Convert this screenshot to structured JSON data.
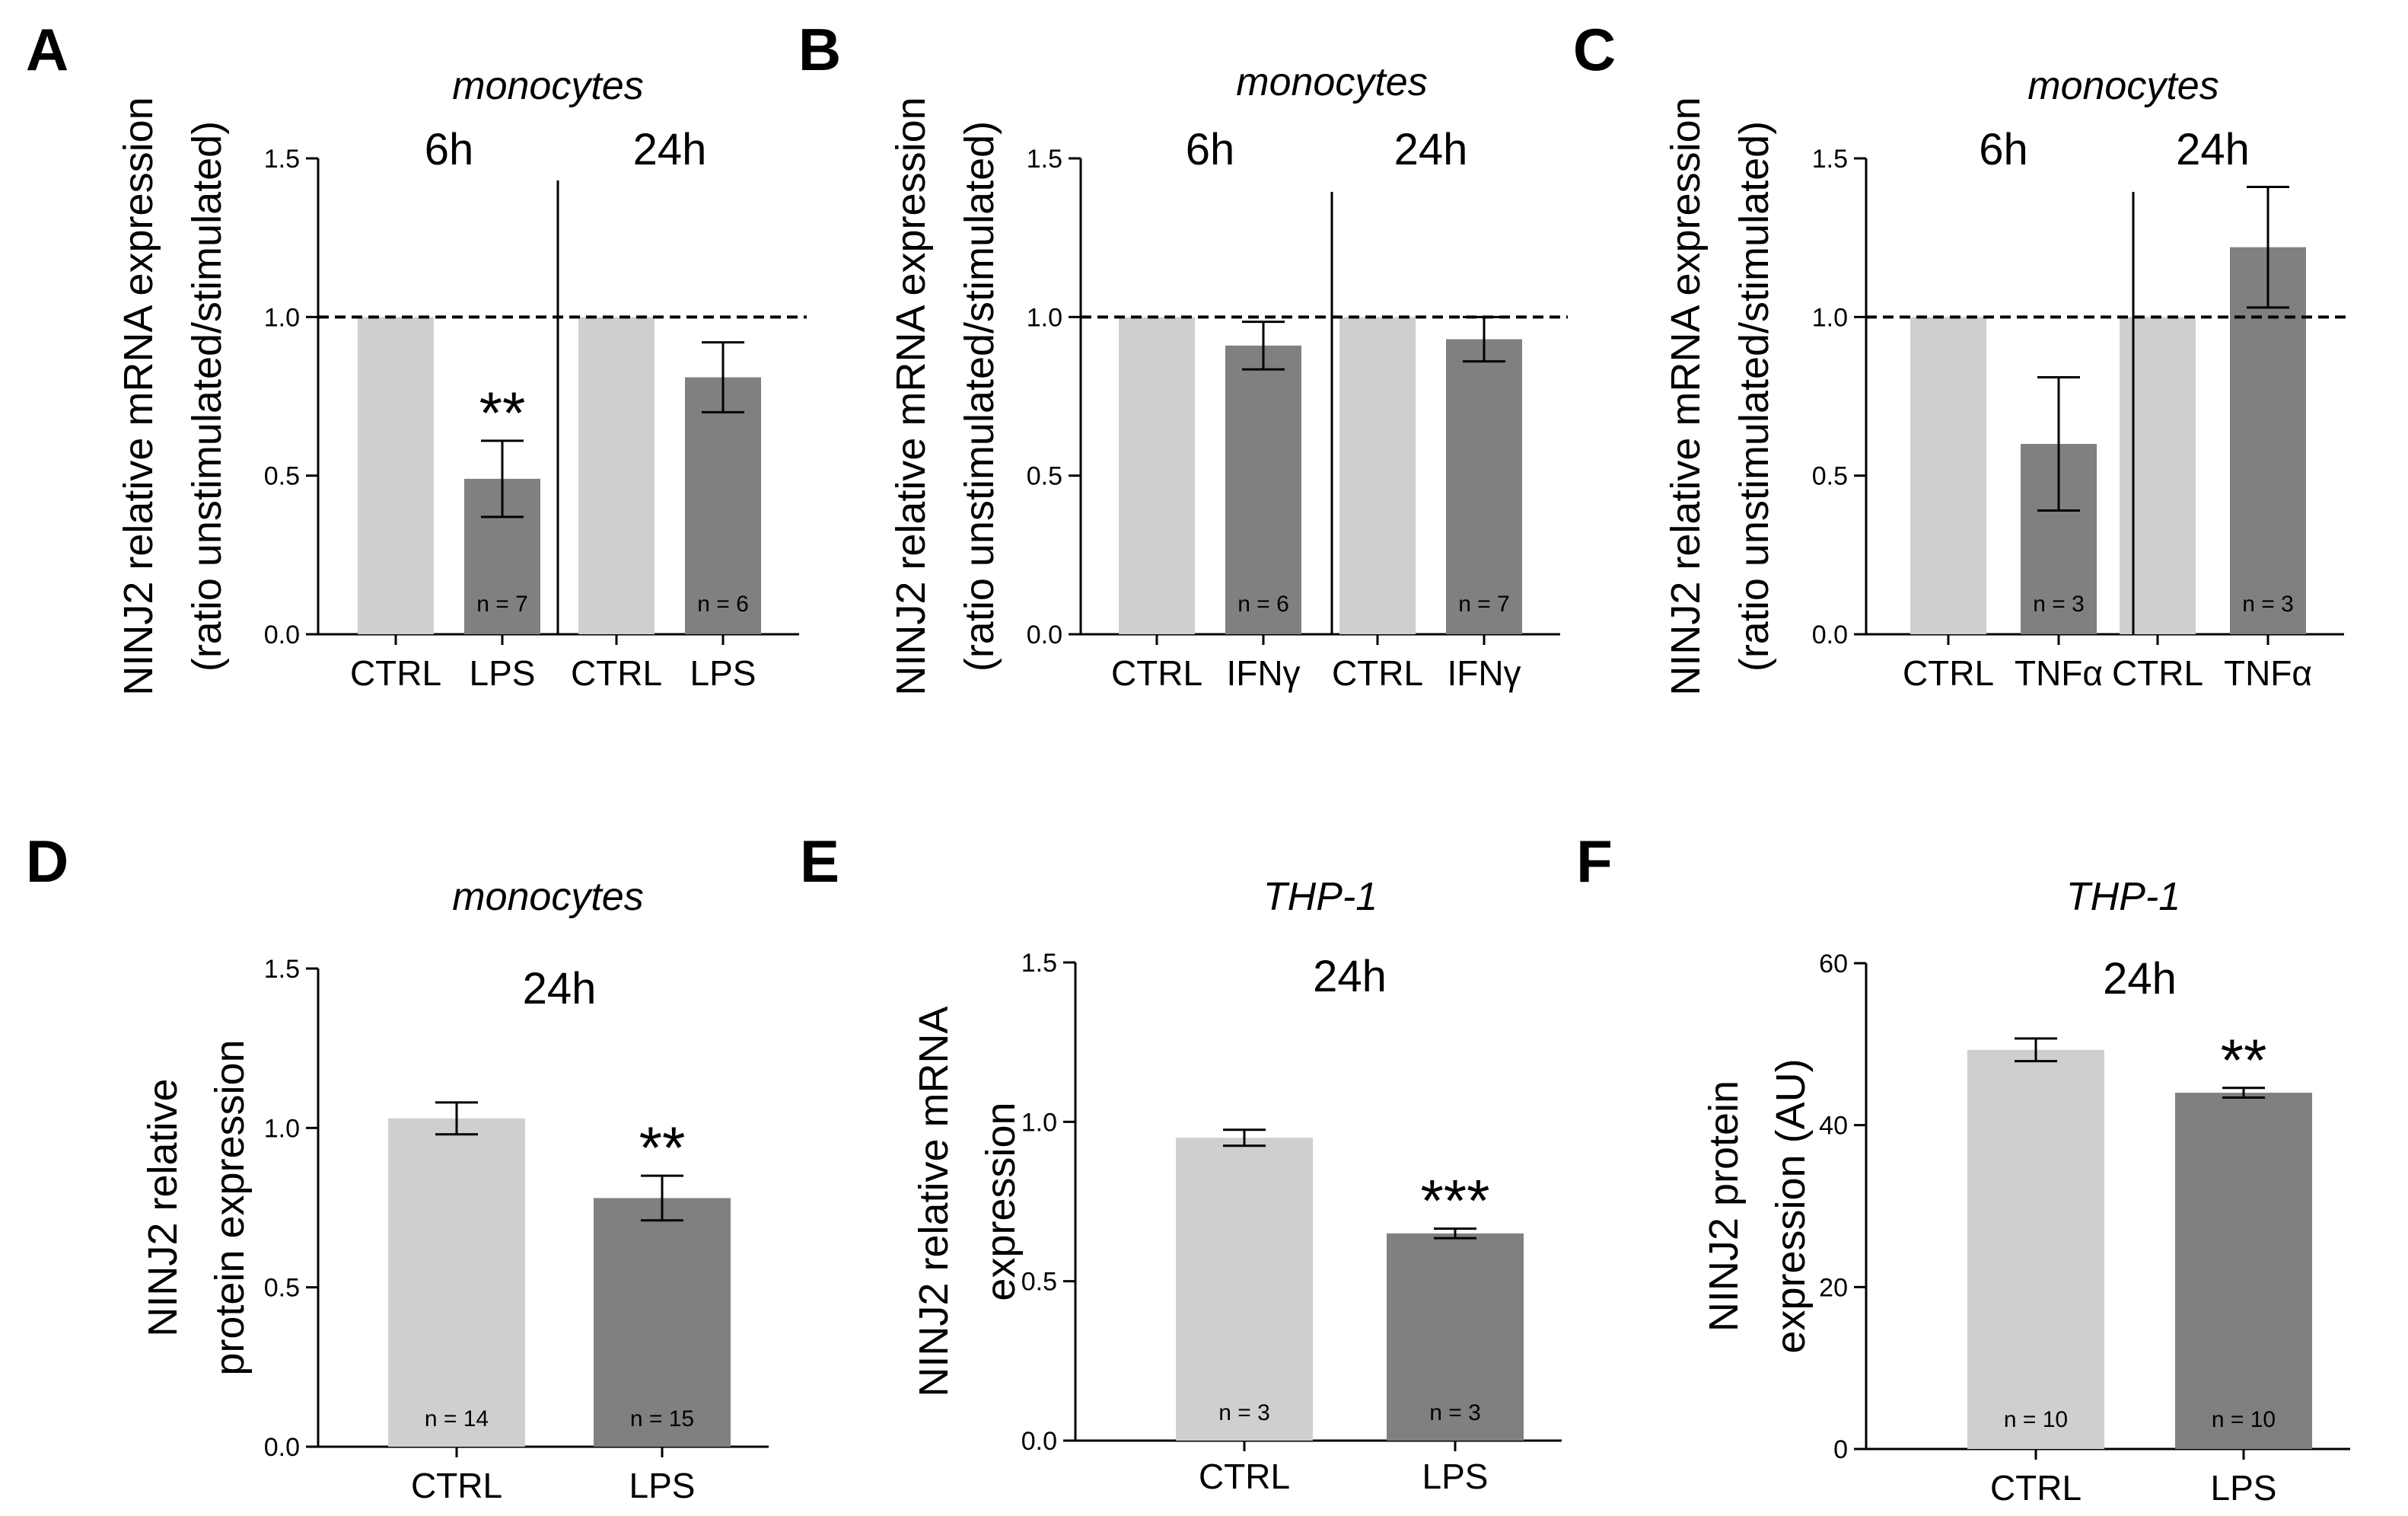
{
  "colors": {
    "ctrl": "#cfcfcf",
    "treated": "#808080",
    "axis": "#000000",
    "reference_line": "#000000"
  },
  "chart_data": [
    {
      "panel": "A",
      "type": "bar",
      "subtitle": "monocytes",
      "ylabel_lines": [
        "NINJ2 relative mRNA expression",
        "(ratio unstimulated/stimulated)"
      ],
      "ylim": [
        0,
        1.5
      ],
      "yticks": [
        "0.0",
        "0.5",
        "1.0",
        "1.5"
      ],
      "reference_line": 1.0,
      "groups": [
        {
          "time": "6h",
          "categories": [
            "CTRL",
            "LPS"
          ],
          "values": [
            1.0,
            0.49
          ],
          "errors": [
            null,
            0.12
          ],
          "n": [
            null,
            "n = 7"
          ],
          "significance": [
            null,
            "**"
          ]
        },
        {
          "time": "24h",
          "categories": [
            "CTRL",
            "LPS"
          ],
          "values": [
            1.0,
            0.81
          ],
          "errors": [
            null,
            0.11
          ],
          "n": [
            null,
            "n = 6"
          ],
          "significance": [
            null,
            null
          ]
        }
      ]
    },
    {
      "panel": "B",
      "type": "bar",
      "subtitle": "monocytes",
      "ylabel_lines": [
        "NINJ2 relative mRNA expression",
        "(ratio unstimulated/stimulated)"
      ],
      "ylim": [
        0,
        1.5
      ],
      "yticks": [
        "0.0",
        "0.5",
        "1.0",
        "1.5"
      ],
      "reference_line": 1.0,
      "groups": [
        {
          "time": "6h",
          "categories": [
            "CTRL",
            "IFNγ"
          ],
          "values": [
            1.0,
            0.91
          ],
          "errors": [
            null,
            0.075
          ],
          "n": [
            null,
            "n = 6"
          ],
          "significance": [
            null,
            null
          ]
        },
        {
          "time": "24h",
          "categories": [
            "CTRL",
            "IFNγ"
          ],
          "values": [
            1.0,
            0.93
          ],
          "errors": [
            null,
            0.07
          ],
          "n": [
            null,
            "n = 7"
          ],
          "significance": [
            null,
            null
          ]
        }
      ]
    },
    {
      "panel": "C",
      "type": "bar",
      "subtitle": "monocytes",
      "ylabel_lines": [
        "NINJ2 relative mRNA expression",
        "(ratio unstimulated/stimulated)"
      ],
      "ylim": [
        0,
        1.5
      ],
      "yticks": [
        "0.0",
        "0.5",
        "1.0",
        "1.5"
      ],
      "reference_line": 1.0,
      "groups": [
        {
          "time": "6h",
          "categories": [
            "CTRL",
            "TNFα"
          ],
          "values": [
            1.0,
            0.6
          ],
          "errors": [
            null,
            0.21
          ],
          "n": [
            null,
            "n = 3"
          ],
          "significance": [
            null,
            null
          ]
        },
        {
          "time": "24h",
          "categories": [
            "CTRL",
            "TNFα"
          ],
          "values": [
            1.0,
            1.22
          ],
          "errors": [
            null,
            0.19
          ],
          "n": [
            null,
            "n = 3"
          ],
          "significance": [
            null,
            null
          ]
        }
      ]
    },
    {
      "panel": "D",
      "type": "bar",
      "subtitle": "monocytes",
      "ylabel_lines": [
        "NINJ2 relative",
        "protein expression"
      ],
      "ylim": [
        0,
        1.5
      ],
      "yticks": [
        "0.0",
        "0.5",
        "1.0",
        "1.5"
      ],
      "reference_line": null,
      "groups": [
        {
          "time": "24h",
          "categories": [
            "CTRL",
            "LPS"
          ],
          "values": [
            1.03,
            0.78
          ],
          "errors": [
            0.05,
            0.07
          ],
          "n": [
            "n = 14",
            "n = 15"
          ],
          "significance": [
            null,
            "**"
          ]
        }
      ]
    },
    {
      "panel": "E",
      "type": "bar",
      "subtitle": "THP-1",
      "ylabel_lines": [
        "NINJ2 relative mRNA",
        "expression"
      ],
      "ylim": [
        0,
        1.5
      ],
      "yticks": [
        "0.0",
        "0.5",
        "1.0",
        "1.5"
      ],
      "reference_line": null,
      "groups": [
        {
          "time": "24h",
          "categories": [
            "CTRL",
            "LPS"
          ],
          "values": [
            0.95,
            0.65
          ],
          "errors": [
            0.025,
            0.015
          ],
          "n": [
            "n = 3",
            "n = 3"
          ],
          "significance": [
            null,
            "***"
          ]
        }
      ]
    },
    {
      "panel": "F",
      "type": "bar",
      "subtitle": "THP-1",
      "ylabel_lines": [
        "NINJ2 protein",
        "expression (AU)"
      ],
      "ylim": [
        0,
        60
      ],
      "yticks": [
        "0",
        "20",
        "40",
        "60"
      ],
      "reference_line": null,
      "groups": [
        {
          "time": "24h",
          "categories": [
            "CTRL",
            "LPS"
          ],
          "values": [
            49.3,
            44.0
          ],
          "errors": [
            1.4,
            0.6
          ],
          "n": [
            "n = 10",
            "n = 10"
          ],
          "significance": [
            null,
            "**"
          ]
        }
      ]
    }
  ]
}
